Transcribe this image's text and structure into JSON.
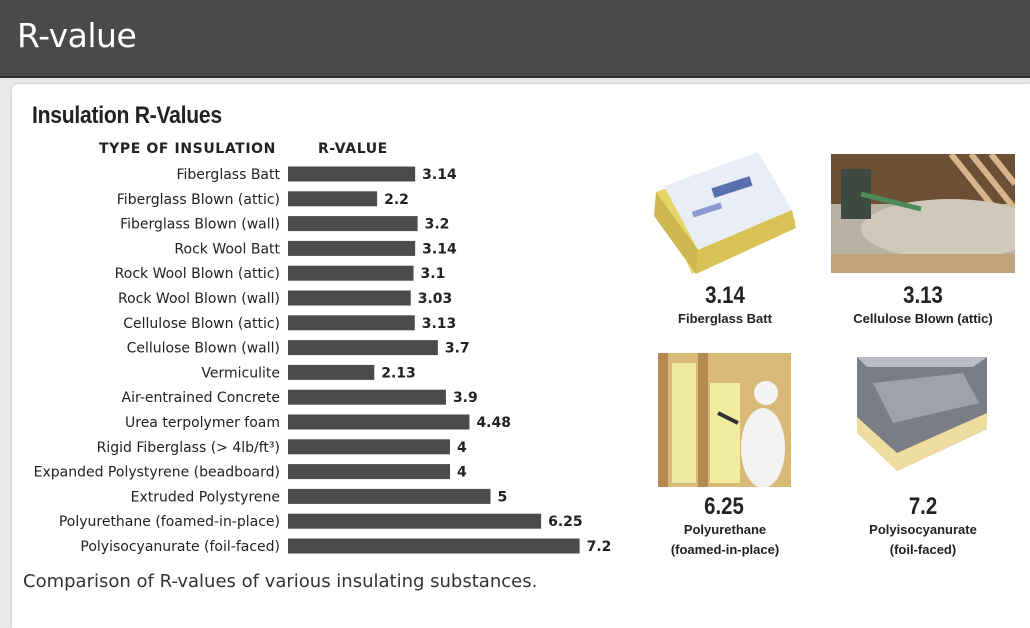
{
  "header": {
    "title": "R-value"
  },
  "figure": {
    "caption": "Comparison of R-values of various insulating substances."
  },
  "chart_data": {
    "type": "bar",
    "orientation": "horizontal",
    "title": "Insulation R-Values",
    "category_header": "TYPE OF INSULATION",
    "value_header": "R-VALUE",
    "categories": [
      "Fiberglass Batt",
      "Fiberglass Blown (attic)",
      "Fiberglass Blown (wall)",
      "Rock Wool Batt",
      "Rock Wool Blown (attic)",
      "Rock Wool Blown (wall)",
      "Cellulose Blown (attic)",
      "Cellulose Blown (wall)",
      "Vermiculite",
      "Air-entrained Concrete",
      "Urea terpolymer foam",
      "Rigid Fiberglass (> 4lb/ft³)",
      "Expanded Polystyrene (beadboard)",
      "Extruded Polystyrene",
      "Polyurethane (foamed-in-place)",
      "Polyisocyanurate (foil-faced)"
    ],
    "values": [
      3.14,
      2.2,
      3.2,
      3.14,
      3.1,
      3.03,
      3.13,
      3.7,
      2.13,
      3.9,
      4.48,
      4,
      4,
      5,
      6.25,
      7.2
    ],
    "value_labels": [
      "3.14",
      "2.2",
      "3.2",
      "3.14",
      "3.1",
      "3.03",
      "3.13",
      "3.7",
      "2.13",
      "3.9",
      "4.48",
      "4",
      "4",
      "5",
      "6.25",
      "7.2"
    ],
    "bar_color": "#4b4b4b"
  },
  "cards": [
    {
      "value": "3.14",
      "label": [
        "Fiberglass Batt"
      ],
      "image": "fiberglass-batt-photo"
    },
    {
      "value": "3.13",
      "label": [
        "Cellulose Blown (attic)"
      ],
      "image": "cellulose-attic-photo"
    },
    {
      "value": "6.25",
      "label": [
        "Polyurethane",
        "(foamed-in-place)"
      ],
      "image": "spray-foam-photo"
    },
    {
      "value": "7.2",
      "label": [
        "Polyisocyanurate",
        "(foil-faced)"
      ],
      "image": "foil-board-photo"
    }
  ]
}
